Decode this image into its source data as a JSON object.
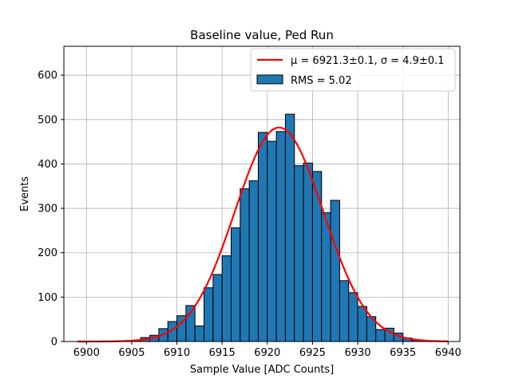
{
  "chart_data": {
    "type": "bar",
    "title": "Baseline value, Ped Run",
    "xlabel": "Sample Value [ADC Counts]",
    "ylabel": "Events",
    "xlim": [
      6897.5,
      6941.3
    ],
    "ylim": [
      0,
      665
    ],
    "xticks": [
      6900,
      6905,
      6910,
      6915,
      6920,
      6925,
      6930,
      6935,
      6940
    ],
    "yticks": [
      0,
      100,
      200,
      300,
      400,
      500,
      600
    ],
    "grid": true,
    "legend_position": "top-right",
    "bin_width": 1,
    "bins": [
      {
        "x": 6905,
        "value": 1
      },
      {
        "x": 6906,
        "value": 9
      },
      {
        "x": 6907,
        "value": 14
      },
      {
        "x": 6908,
        "value": 29
      },
      {
        "x": 6909,
        "value": 45
      },
      {
        "x": 6910,
        "value": 58
      },
      {
        "x": 6911,
        "value": 81
      },
      {
        "x": 6912,
        "value": 35
      },
      {
        "x": 6913,
        "value": 121
      },
      {
        "x": 6914,
        "value": 151
      },
      {
        "x": 6915,
        "value": 193
      },
      {
        "x": 6916,
        "value": 256
      },
      {
        "x": 6917,
        "value": 344
      },
      {
        "x": 6918,
        "value": 362
      },
      {
        "x": 6919,
        "value": 471
      },
      {
        "x": 6920,
        "value": 451
      },
      {
        "x": 6921,
        "value": 473
      },
      {
        "x": 6922,
        "value": 512
      },
      {
        "x": 6923,
        "value": 396
      },
      {
        "x": 6924,
        "value": 402
      },
      {
        "x": 6925,
        "value": 383
      },
      {
        "x": 6926,
        "value": 290
      },
      {
        "x": 6927,
        "value": 318
      },
      {
        "x": 6928,
        "value": 137
      },
      {
        "x": 6929,
        "value": 110
      },
      {
        "x": 6930,
        "value": 79
      },
      {
        "x": 6931,
        "value": 56
      },
      {
        "x": 6932,
        "value": 27
      },
      {
        "x": 6933,
        "value": 30
      },
      {
        "x": 6934,
        "value": 19
      },
      {
        "x": 6935,
        "value": 8
      },
      {
        "x": 6936,
        "value": 3
      }
    ],
    "fit": {
      "type": "gaussian",
      "mean": 6921.3,
      "sigma": 4.9,
      "amplitude": 482,
      "x_range": [
        6899,
        6940
      ]
    },
    "legend": [
      {
        "label": "μ = 6921.3±0.1, σ = 4.9±0.1",
        "kind": "line",
        "color": "#ff0000"
      },
      {
        "label": "RMS = 5.02",
        "kind": "patch",
        "color": "#1f77b4"
      }
    ],
    "colors": {
      "bar_fill": "#1f77b4",
      "bar_edge": "#000000",
      "fit_line": "#ff0000",
      "grid": "#b0b0b0"
    }
  }
}
